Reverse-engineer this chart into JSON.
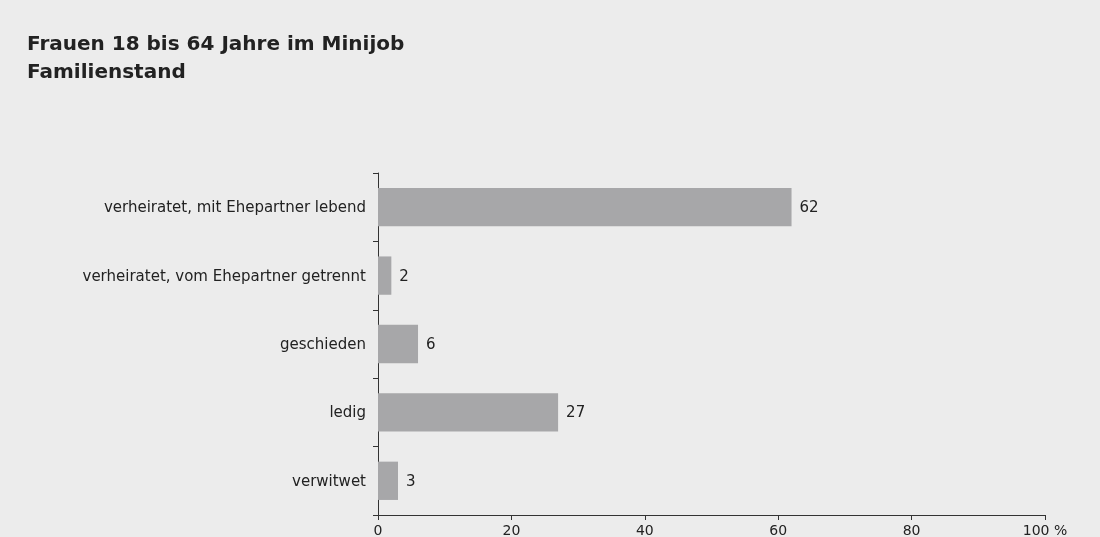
{
  "chart_data": {
    "type": "bar",
    "orientation": "horizontal",
    "title": "Frauen 18 bis 64 Jahre im Minijob",
    "subtitle": "Familienstand",
    "categories": [
      "verheiratet, mit Ehepartner lebend",
      "verheiratet, vom Ehepartner getrennt",
      "geschieden",
      "ledig",
      "verwitwet"
    ],
    "values": [
      62,
      2,
      6,
      27,
      3
    ],
    "color": "#a7a7a9",
    "xlim": [
      0,
      100
    ],
    "xticks": [
      0,
      20,
      40,
      60,
      80,
      {
        "value": 100,
        "label": "100 %"
      }
    ],
    "grid": false,
    "data_labels": true
  }
}
